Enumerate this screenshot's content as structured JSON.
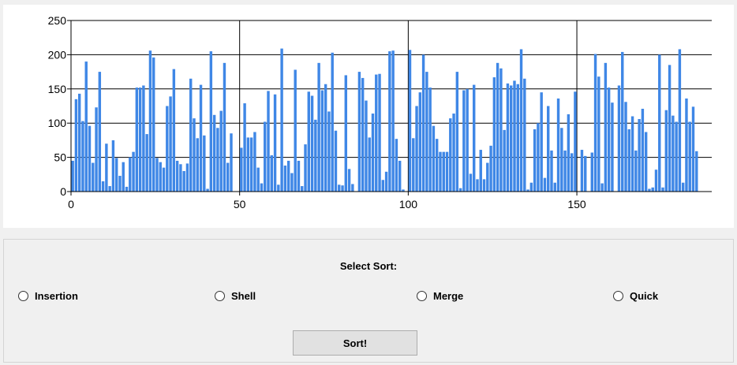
{
  "controls": {
    "select_title": "Select Sort:",
    "options": [
      {
        "label": "Insertion"
      },
      {
        "label": "Shell"
      },
      {
        "label": "Merge"
      },
      {
        "label": "Quick"
      }
    ],
    "sort_button_label": "Sort!"
  },
  "chart_data": {
    "type": "bar",
    "bar_color": "#3f87e6",
    "grid_color": "#000000",
    "grid": true,
    "xlim": [
      0,
      190
    ],
    "ylim": [
      0,
      250
    ],
    "x_ticks": [
      0,
      50,
      100,
      150
    ],
    "y_ticks": [
      0,
      50,
      100,
      150,
      200,
      250
    ],
    "values": [
      45,
      135,
      143,
      103,
      190,
      96,
      42,
      123,
      175,
      15,
      70,
      8,
      75,
      49,
      23,
      43,
      7,
      50,
      58,
      152,
      152,
      155,
      84,
      206,
      196,
      49,
      43,
      35,
      125,
      139,
      179,
      45,
      40,
      30,
      41,
      165,
      107,
      78,
      156,
      82,
      4,
      205,
      112,
      93,
      118,
      188,
      42,
      85,
      0,
      0,
      64,
      129,
      79,
      79,
      87,
      35,
      12,
      102,
      147,
      53,
      142,
      10,
      209,
      38,
      45,
      27,
      178,
      45,
      8,
      69,
      146,
      140,
      105,
      188,
      148,
      157,
      117,
      203,
      89,
      10,
      9,
      170,
      33,
      11,
      0,
      175,
      166,
      133,
      79,
      114,
      171,
      172,
      17,
      29,
      205,
      206,
      77,
      45,
      3,
      0,
      207,
      78,
      125,
      145,
      200,
      175,
      152,
      96,
      77,
      58,
      58,
      58,
      107,
      114,
      175,
      5,
      148,
      150,
      26,
      156,
      18,
      61,
      18,
      42,
      67,
      167,
      188,
      180,
      90,
      158,
      155,
      162,
      157,
      208,
      165,
      3,
      13,
      91,
      100,
      145,
      20,
      125,
      60,
      13,
      136,
      93,
      60,
      113,
      56,
      146,
      0,
      61,
      52,
      0,
      57,
      201,
      168,
      12,
      188,
      152,
      130,
      0,
      155,
      204,
      131,
      91,
      110,
      60,
      106,
      121,
      87,
      4,
      6,
      32,
      200,
      6,
      119,
      185,
      111,
      102,
      208,
      13,
      136,
      102,
      124,
      59
    ]
  }
}
